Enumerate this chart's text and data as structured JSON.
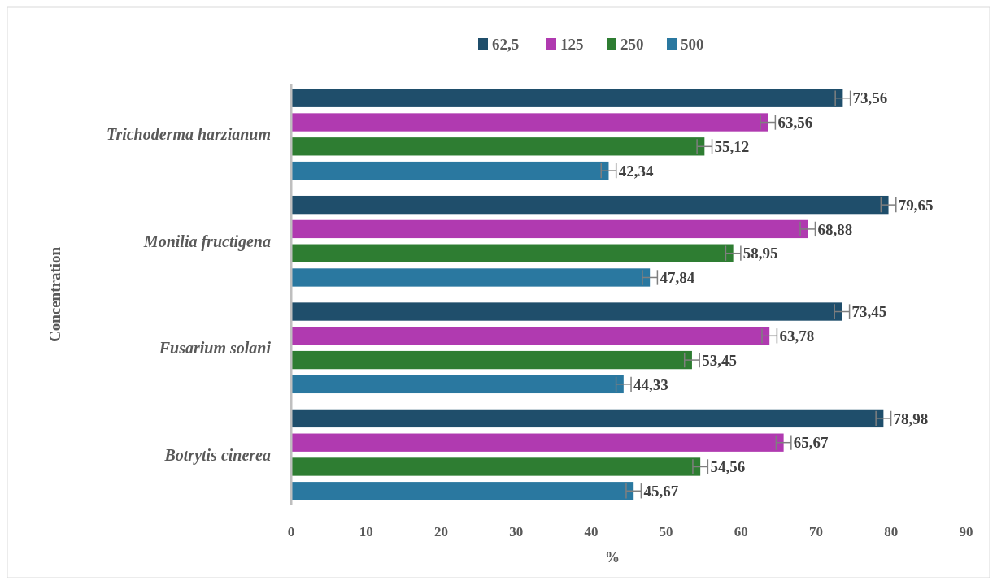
{
  "chart_data": {
    "type": "bar",
    "orientation": "horizontal",
    "xlabel": "%",
    "ylabel": "Concentration",
    "categories": [
      "Trichoderma harzianum",
      "Monilia fructigena",
      "Fusarium solani",
      "Botrytis cinerea"
    ],
    "series": [
      {
        "name": "62,5",
        "color": "#1f4e6b",
        "values": [
          73.56,
          79.65,
          73.45,
          78.98
        ],
        "errors": [
          1,
          1,
          1,
          1
        ],
        "value_labels": [
          "73,56",
          "79,65",
          "73,45",
          "78,98"
        ]
      },
      {
        "name": "125",
        "color": "#b03ab0",
        "values": [
          63.56,
          68.88,
          63.78,
          65.67
        ],
        "errors": [
          1,
          1,
          1,
          1
        ],
        "value_labels": [
          "63,56",
          "68,88",
          "63,78",
          "65,67"
        ]
      },
      {
        "name": "250",
        "color": "#2e7d32",
        "values": [
          55.12,
          58.95,
          53.45,
          54.56
        ],
        "errors": [
          1,
          1,
          1,
          1
        ],
        "value_labels": [
          "55,12",
          "58,95",
          "53,45",
          "54,56"
        ]
      },
      {
        "name": "500",
        "color": "#2a78a0",
        "values": [
          42.34,
          47.84,
          44.33,
          45.67
        ],
        "errors": [
          1,
          1,
          1,
          1
        ],
        "value_labels": [
          "42,34",
          "47,84",
          "44,33",
          "45,67"
        ]
      }
    ],
    "xlim": [
      0,
      90
    ],
    "xticks": [
      0,
      10,
      20,
      30,
      40,
      50,
      60,
      70,
      80,
      90
    ],
    "grid": false,
    "legend": "top"
  }
}
